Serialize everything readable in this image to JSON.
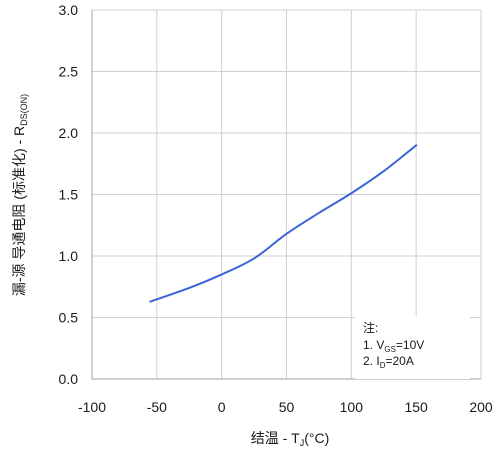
{
  "chart_data": {
    "type": "line",
    "xlabel": {
      "main": "结温 - T",
      "sub": "J",
      "suffix": "(°C)"
    },
    "ylabel": {
      "main": "漏-源 导通电阻 (标准化) - R",
      "sub": "DS(ON)"
    },
    "xlim": [
      -100,
      200
    ],
    "ylim": [
      0.0,
      3.0
    ],
    "x_ticks": [
      -100,
      -50,
      0,
      50,
      100,
      150,
      200
    ],
    "x_tick_labels": [
      "-100",
      "-50",
      "0",
      "50",
      "100",
      "150",
      "200"
    ],
    "y_ticks": [
      0.0,
      0.5,
      1.0,
      1.5,
      2.0,
      2.5,
      3.0
    ],
    "y_tick_labels": [
      "0.0",
      "0.5",
      "1.0",
      "1.5",
      "2.0",
      "2.5",
      "3.0"
    ],
    "grid": true,
    "line_color": "#3a64d8",
    "series": [
      {
        "x": [
          -55,
          -25,
          0,
          25,
          50,
          75,
          100,
          125,
          150
        ],
        "y": [
          0.63,
          0.74,
          0.85,
          0.98,
          1.18,
          1.35,
          1.51,
          1.69,
          1.9
        ]
      }
    ],
    "annotation": {
      "title": "注:",
      "lines": [
        {
          "prefix": "1. V",
          "sub": "GS",
          "suffix": "=10V"
        },
        {
          "prefix": "2. I",
          "sub": "D",
          "suffix": "=20A"
        }
      ]
    }
  }
}
